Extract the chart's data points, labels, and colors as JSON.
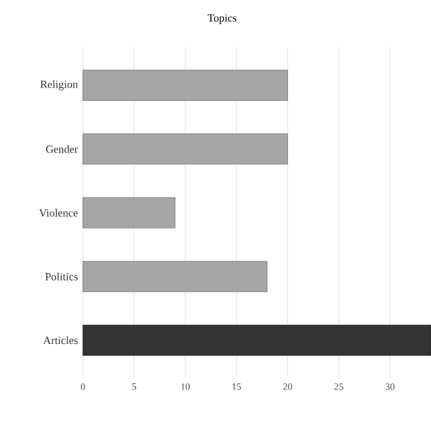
{
  "chart_data": {
    "type": "bar",
    "orientation": "horizontal",
    "title": "Topics",
    "categories": [
      "Religion",
      "Gender",
      "Violence",
      "Politics",
      "Articles"
    ],
    "values": [
      20,
      20,
      9,
      18,
      34
    ],
    "colors": [
      "#a6a6a6",
      "#a6a6a6",
      "#a6a6a6",
      "#a6a6a6",
      "#333333"
    ],
    "xlim": [
      0,
      34
    ],
    "xticks": [
      0,
      5,
      10,
      15,
      20,
      25,
      30
    ],
    "grid": "x"
  }
}
